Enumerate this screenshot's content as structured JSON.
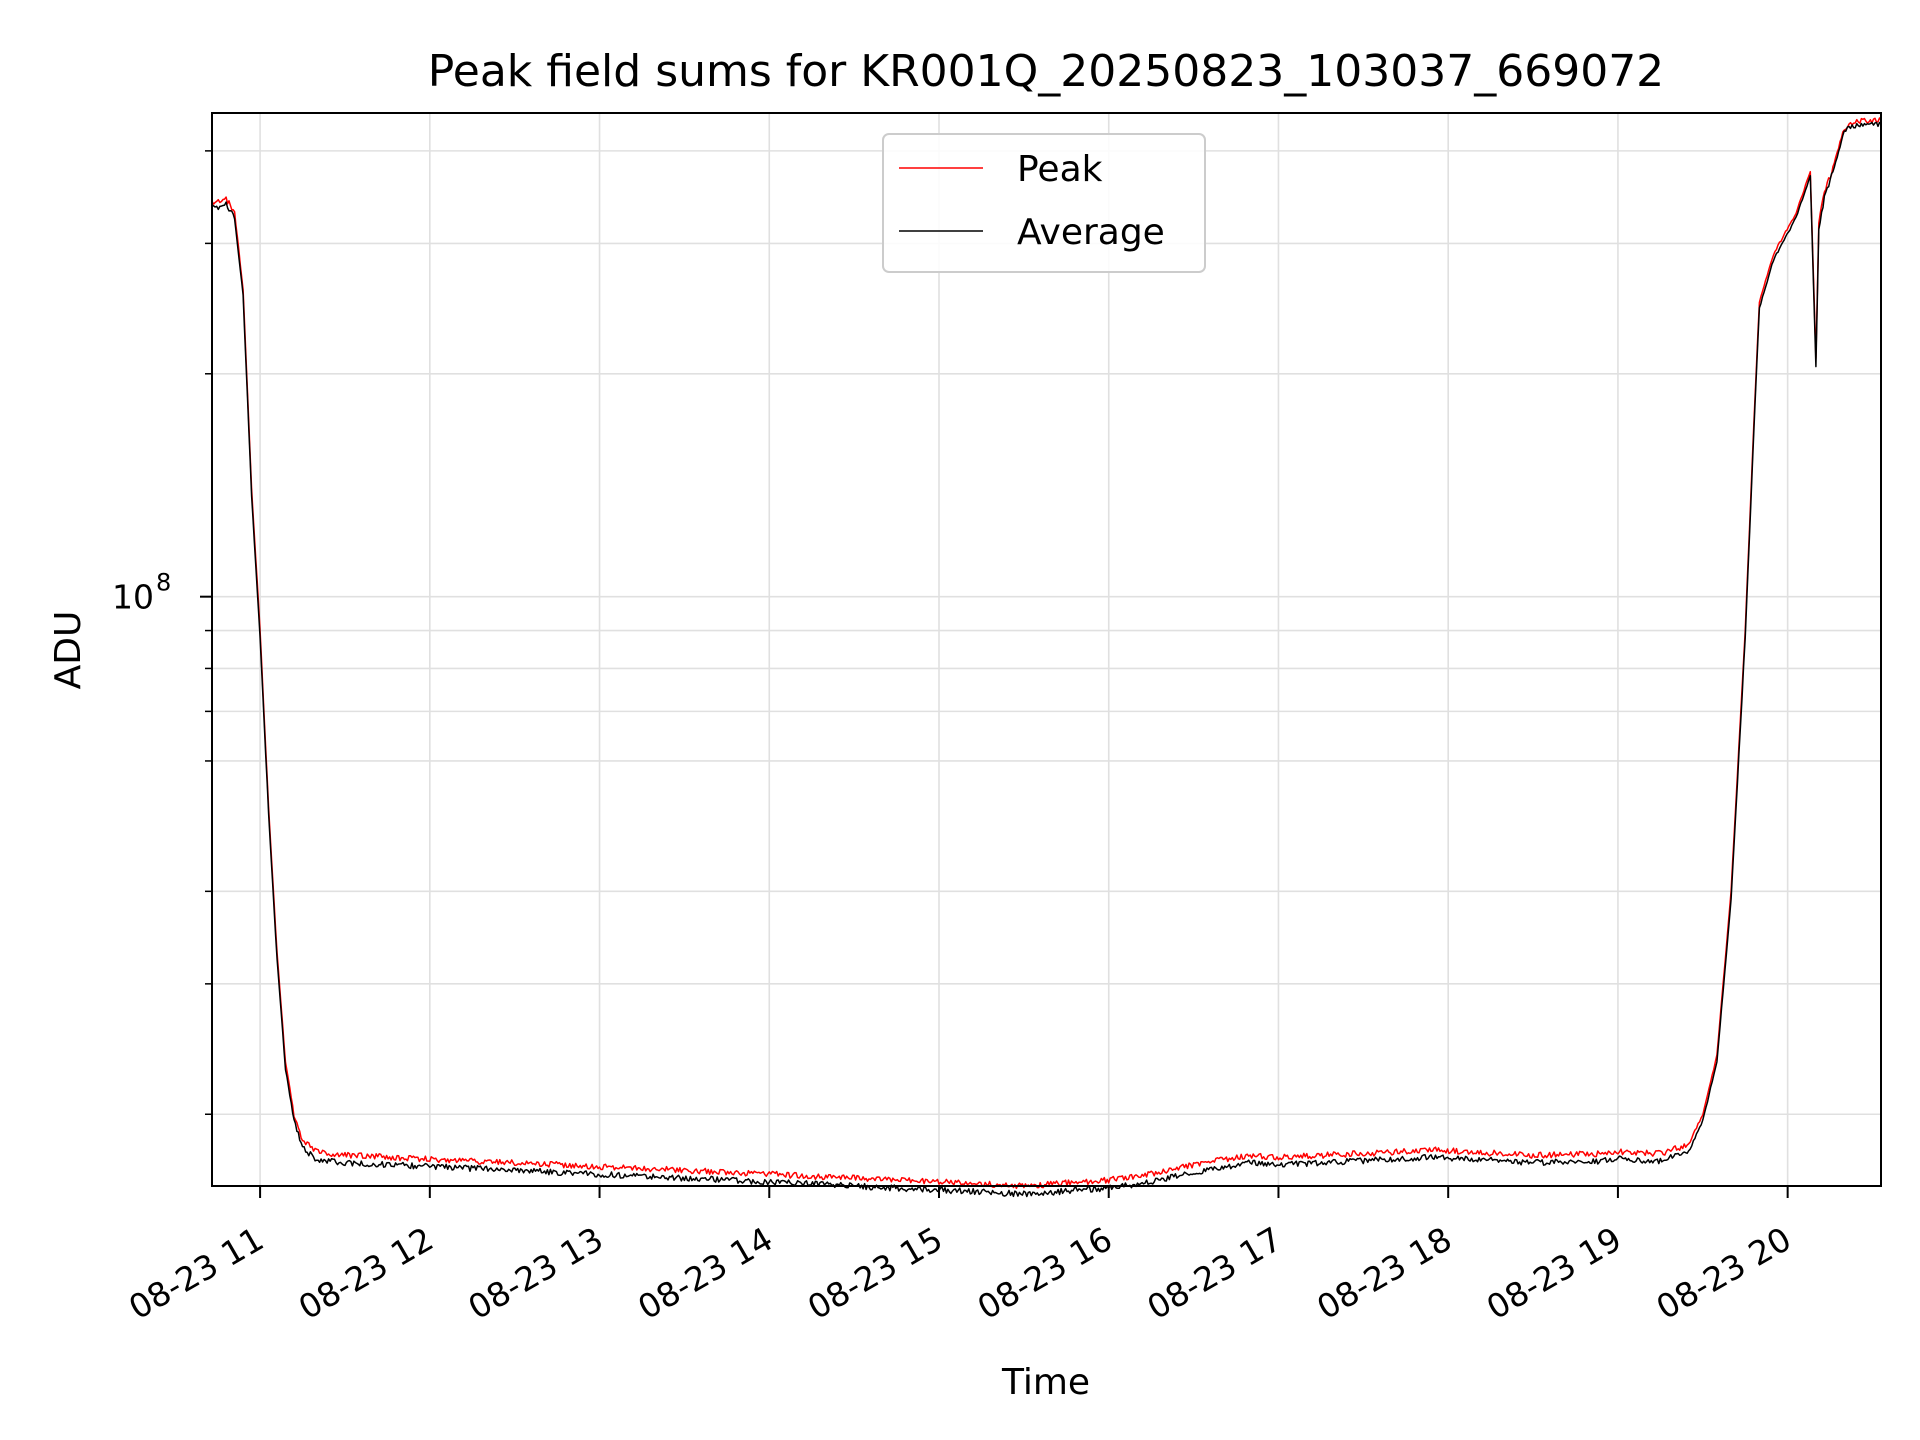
{
  "chart_data": {
    "type": "line",
    "title": "Peak field sums for KR001Q_20250823_103037_669072",
    "xlabel": "Time",
    "ylabel": "ADU",
    "y_scale": "log",
    "ylim": [
      16000000,
      450000000
    ],
    "xlim": [
      "2025-08-23 10:43",
      "2025-08-23 20:33"
    ],
    "grid": true,
    "legend_position": "upper center",
    "x_ticks": [
      {
        "value": "2025-08-23 11:00",
        "label": "08-23 11"
      },
      {
        "value": "2025-08-23 12:00",
        "label": "08-23 12"
      },
      {
        "value": "2025-08-23 13:00",
        "label": "08-23 13"
      },
      {
        "value": "2025-08-23 14:00",
        "label": "08-23 14"
      },
      {
        "value": "2025-08-23 15:00",
        "label": "08-23 15"
      },
      {
        "value": "2025-08-23 16:00",
        "label": "08-23 16"
      },
      {
        "value": "2025-08-23 17:00",
        "label": "08-23 17"
      },
      {
        "value": "2025-08-23 18:00",
        "label": "08-23 18"
      },
      {
        "value": "2025-08-23 19:00",
        "label": "08-23 19"
      },
      {
        "value": "2025-08-23 20:00",
        "label": "08-23 20"
      }
    ],
    "y_major_ticks": [
      {
        "value": 100000000,
        "base": "10",
        "exponent": "8"
      }
    ],
    "y_minor_ticks": [
      20000000,
      30000000,
      40000000,
      60000000,
      70000000,
      80000000,
      90000000,
      200000000,
      300000000,
      400000000
    ],
    "x": [
      "2025-08-23 10:43",
      "2025-08-23 10:48",
      "2025-08-23 10:51",
      "2025-08-23 10:54",
      "2025-08-23 10:57",
      "2025-08-23 11:00",
      "2025-08-23 11:03",
      "2025-08-23 11:06",
      "2025-08-23 11:09",
      "2025-08-23 11:12",
      "2025-08-23 11:15",
      "2025-08-23 11:20",
      "2025-08-23 11:30",
      "2025-08-23 12:00",
      "2025-08-23 12:30",
      "2025-08-23 13:00",
      "2025-08-23 13:30",
      "2025-08-23 14:00",
      "2025-08-23 14:30",
      "2025-08-23 15:00",
      "2025-08-23 15:30",
      "2025-08-23 16:00",
      "2025-08-23 16:15",
      "2025-08-23 16:30",
      "2025-08-23 16:50",
      "2025-08-23 17:00",
      "2025-08-23 17:30",
      "2025-08-23 17:55",
      "2025-08-23 18:30",
      "2025-08-23 18:55",
      "2025-08-23 19:00",
      "2025-08-23 19:15",
      "2025-08-23 19:25",
      "2025-08-23 19:30",
      "2025-08-23 19:35",
      "2025-08-23 19:40",
      "2025-08-23 19:45",
      "2025-08-23 19:48",
      "2025-08-23 19:50",
      "2025-08-23 19:55",
      "2025-08-23 20:03",
      "2025-08-23 20:08",
      "2025-08-23 20:10",
      "2025-08-23 20:11",
      "2025-08-23 20:13",
      "2025-08-23 20:16",
      "2025-08-23 20:20",
      "2025-08-23 20:25",
      "2025-08-23 20:33"
    ],
    "series": [
      {
        "name": "Peak",
        "color": "#ff0000",
        "values": [
          340000000,
          345000000,
          330000000,
          260000000,
          140000000,
          90000000,
          52000000,
          33000000,
          23500000,
          20000000,
          18400000,
          17800000,
          17600000,
          17400000,
          17200000,
          17000000,
          16800000,
          16600000,
          16400000,
          16200000,
          16000000,
          16300000,
          16600000,
          17100000,
          17600000,
          17500000,
          17700000,
          17900000,
          17600000,
          17700000,
          17800000,
          17700000,
          18200000,
          20000000,
          24000000,
          40000000,
          90000000,
          170000000,
          250000000,
          290000000,
          330000000,
          375000000,
          210000000,
          320000000,
          350000000,
          380000000,
          430000000,
          440000000,
          440000000
        ]
      },
      {
        "name": "Average",
        "color": "#000000",
        "values": [
          334000000,
          339000000,
          324000000,
          255000000,
          137000000,
          88000000,
          51000000,
          32400000,
          23000000,
          19600000,
          18000000,
          17400000,
          17200000,
          17000000,
          16800000,
          16600000,
          16400000,
          16200000,
          16000000,
          15800000,
          15600000,
          15900000,
          16200000,
          16700000,
          17200000,
          17100000,
          17300000,
          17500000,
          17200000,
          17300000,
          17400000,
          17300000,
          17800000,
          19600000,
          23500000,
          39000000,
          88000000,
          166000000,
          245000000,
          285000000,
          325000000,
          370000000,
          205000000,
          315000000,
          345000000,
          375000000,
          425000000,
          435000000,
          435000000
        ]
      }
    ]
  }
}
